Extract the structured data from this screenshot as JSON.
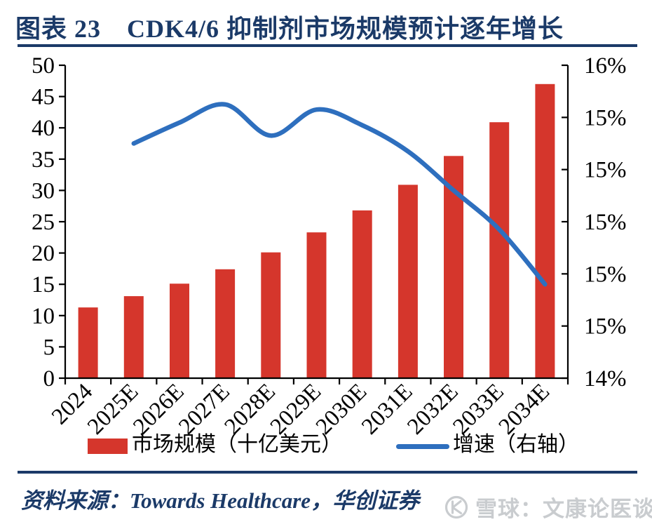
{
  "header": {
    "title": "图表 23　CDK4/6 抑制剂市场规模预计逐年增长"
  },
  "footer": {
    "source_label": "资料来源：Towards Healthcare，华创证券",
    "watermark": "雪球：文康论医谈药"
  },
  "colors": {
    "navy": "#1B3A68",
    "bar_red": "#D5362C",
    "line_blue": "#2E6FBE",
    "axis_black": "#000000",
    "watermark_gray": "#C9CCCF"
  },
  "chart_data": {
    "type": "combo-bar-line",
    "title": "CDK4/6 抑制剂市场规模预计逐年增长",
    "categories": [
      "2024",
      "2025E",
      "2026E",
      "2027E",
      "2028E",
      "2029E",
      "2030E",
      "2031E",
      "2032E",
      "2033E",
      "2034E"
    ],
    "series": [
      {
        "name": "市场规模（十亿美元）",
        "type": "bar",
        "axis": "left",
        "color_key": "bar_red",
        "values": [
          11.3,
          13.1,
          15.1,
          17.4,
          20.1,
          23.3,
          26.8,
          30.9,
          35.5,
          40.9,
          47.0
        ]
      },
      {
        "name": "增速（右轴）",
        "type": "line",
        "axis": "right",
        "color_key": "line_blue",
        "values": [
          null,
          15.3,
          15.38,
          15.45,
          15.33,
          15.43,
          15.37,
          15.27,
          15.12,
          14.97,
          14.76
        ]
      }
    ],
    "left_axis": {
      "min": 0,
      "max": 50,
      "step": 5,
      "tick_labels": [
        "0",
        "5",
        "10",
        "15",
        "20",
        "25",
        "30",
        "35",
        "40",
        "45",
        "50"
      ]
    },
    "right_axis": {
      "min": 14.4,
      "max": 15.6,
      "tick_labels_top_to_bottom": [
        "16%",
        "15%",
        "15%",
        "15%",
        "15%",
        "15%",
        "14%"
      ]
    },
    "gridlines": false,
    "legend_position": "bottom"
  }
}
